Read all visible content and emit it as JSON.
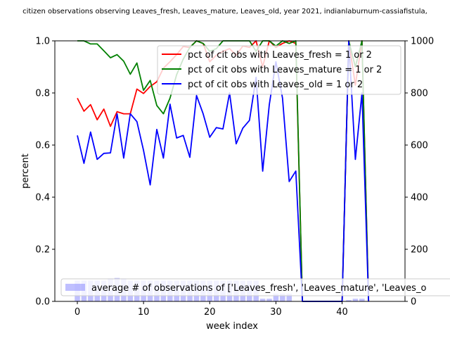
{
  "chart_data": {
    "type": "line",
    "title": "citizen observations observing Leaves_fresh, Leaves_mature, Leaves_old, year 2021, indianlaburnum-cassiafistula, ",
    "xlabel": "week index",
    "ylabel": "percent",
    "xlim": [
      -3.4,
      49.5
    ],
    "ylim": [
      0,
      1.0
    ],
    "y2lim": [
      0,
      1000
    ],
    "xticks": [
      0,
      10,
      20,
      30,
      40
    ],
    "yticks": [
      0.0,
      0.2,
      0.4,
      0.6,
      0.8,
      1.0
    ],
    "y2ticks": [
      0,
      200,
      400,
      600,
      800,
      1000
    ],
    "grid": false,
    "legend_placement": "upper-right",
    "series": [
      {
        "name": "pct of cit obs with Leaves_fresh = 1 or 2",
        "color": "#ff0000",
        "axis": "left",
        "x": [
          0,
          1,
          2,
          3,
          4,
          5,
          6,
          7,
          8,
          9,
          10,
          11,
          12,
          13,
          14,
          15,
          16,
          17,
          18,
          19,
          20,
          21,
          22,
          23,
          24,
          25,
          26,
          27,
          28,
          29,
          30,
          31,
          32,
          33,
          34,
          35,
          36,
          37,
          38,
          39,
          40,
          41,
          42,
          43,
          44
        ],
        "values": [
          0.78,
          0.73,
          0.755,
          0.697,
          0.738,
          0.672,
          0.728,
          0.72,
          0.72,
          0.815,
          0.798,
          0.825,
          0.843,
          0.895,
          0.92,
          0.947,
          0.978,
          0.975,
          1.0,
          0.99,
          0.92,
          0.945,
          0.96,
          0.97,
          0.945,
          0.98,
          0.975,
          1.0,
          0.9,
          1.0,
          0.975,
          0.99,
          1.0,
          0.99,
          0.0,
          0.0,
          0.0,
          0.0,
          0.0,
          0.0,
          0.0,
          1.0,
          0.83,
          1.0,
          0.0
        ]
      },
      {
        "name": "pct of cit obs with Leaves_mature = 1 or 2",
        "color": "#008000",
        "axis": "left",
        "x": [
          0,
          1,
          2,
          3,
          4,
          5,
          6,
          7,
          8,
          9,
          10,
          11,
          12,
          13,
          14,
          15,
          16,
          17,
          18,
          19,
          20,
          21,
          22,
          23,
          24,
          25,
          26,
          27,
          28,
          29,
          30,
          31,
          32,
          33,
          34,
          35,
          36,
          37,
          38,
          39,
          40,
          41,
          42,
          43,
          44
        ],
        "values": [
          1.0,
          1.0,
          0.988,
          0.988,
          0.962,
          0.935,
          0.947,
          0.922,
          0.872,
          0.915,
          0.81,
          0.848,
          0.752,
          0.72,
          0.78,
          0.87,
          0.93,
          0.975,
          1.0,
          0.99,
          0.96,
          0.97,
          1.0,
          1.0,
          1.0,
          1.0,
          1.0,
          0.96,
          1.0,
          1.0,
          0.98,
          1.0,
          0.99,
          1.0,
          0.0,
          0.0,
          0.0,
          0.0,
          0.0,
          0.0,
          0.0,
          1.0,
          0.9,
          1.0,
          0.0
        ]
      },
      {
        "name": "pct of cit obs with Leaves_old = 1 or 2",
        "color": "#0000ff",
        "axis": "left",
        "x": [
          0,
          1,
          2,
          3,
          4,
          5,
          6,
          7,
          8,
          9,
          10,
          11,
          12,
          13,
          14,
          15,
          16,
          17,
          18,
          19,
          20,
          21,
          22,
          23,
          24,
          25,
          26,
          27,
          28,
          29,
          30,
          31,
          32,
          33,
          34,
          35,
          36,
          37,
          38,
          39,
          40,
          41,
          42,
          43,
          44
        ],
        "values": [
          0.637,
          0.53,
          0.65,
          0.545,
          0.568,
          0.57,
          0.72,
          0.55,
          0.72,
          0.69,
          0.58,
          0.447,
          0.66,
          0.55,
          0.757,
          0.627,
          0.637,
          0.553,
          0.79,
          0.72,
          0.63,
          0.667,
          0.662,
          0.8,
          0.605,
          0.665,
          0.695,
          0.86,
          0.5,
          0.755,
          0.92,
          0.78,
          0.46,
          0.5,
          0.0,
          0.0,
          0.0,
          0.0,
          0.0,
          0.0,
          0.0,
          1.0,
          0.545,
          0.8,
          0.0
        ]
      },
      {
        "name": "average # of observations of ['Leaves_fresh', 'Leaves_mature', 'Leaves_o",
        "type": "bar",
        "color": "#8080ff",
        "axis": "right",
        "x": [
          0,
          1,
          2,
          3,
          4,
          5,
          6,
          7,
          8,
          9,
          10,
          11,
          12,
          13,
          14,
          15,
          16,
          17,
          18,
          19,
          20,
          21,
          22,
          23,
          24,
          25,
          26,
          27,
          28,
          29,
          30,
          31,
          32,
          33,
          34,
          35,
          36,
          37,
          38,
          39,
          40,
          41,
          42,
          43,
          44,
          45,
          46,
          47
        ],
        "values": [
          80,
          80,
          80,
          80,
          80,
          88,
          90,
          88,
          80,
          80,
          80,
          80,
          80,
          80,
          80,
          80,
          80,
          80,
          80,
          80,
          80,
          80,
          80,
          80,
          80,
          80,
          80,
          80,
          10,
          10,
          30,
          30,
          30,
          0,
          0,
          0,
          0,
          0,
          0,
          0,
          0,
          5,
          10,
          10,
          0,
          0,
          0,
          0
        ]
      }
    ]
  }
}
